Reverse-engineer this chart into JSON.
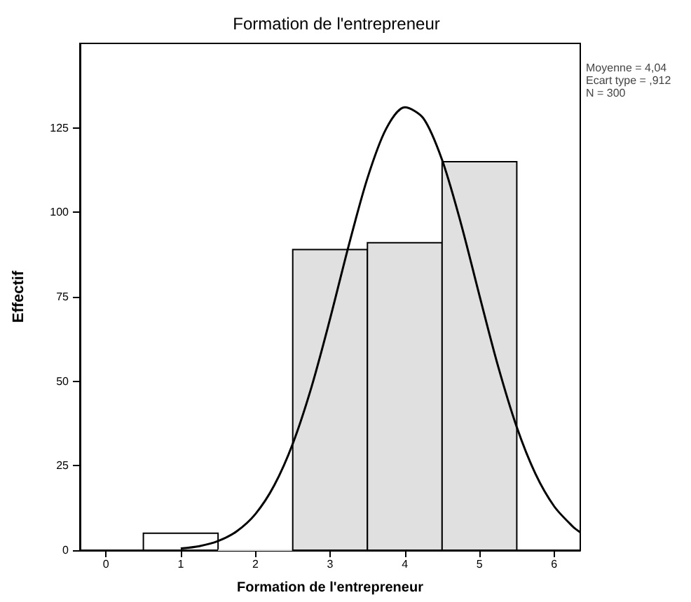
{
  "chart_data": {
    "type": "histogram",
    "title": "Formation de l'entrepreneur",
    "xlabel": "Formation de l'entrepreneur",
    "ylabel": "Effectif",
    "annotations": [
      "Moyenne = 4,04",
      "Ecart type = ,912",
      "N = 300"
    ],
    "bins": [
      0.5,
      1.5,
      2.5,
      3.5,
      4.5,
      5.5
    ],
    "values": [
      5,
      0,
      89,
      91,
      115
    ],
    "colors": [
      "#ffffff",
      "#e0e0e0",
      "#e0e0e0",
      "#e0e0e0",
      "#e0e0e0"
    ],
    "series": [
      {
        "type": "line",
        "color": "#000000",
        "x": [
          1,
          1.25,
          1.5,
          1.75,
          2,
          2.25,
          2.5,
          2.75,
          3,
          3.25,
          3.5,
          3.75,
          4,
          4.25,
          4.5,
          4.75,
          5,
          5.25,
          5.5,
          5.75,
          6,
          6.25,
          6.35
        ],
        "values": [
          0.5,
          1.2,
          2.7,
          5.6,
          10.7,
          19.1,
          31.5,
          48.2,
          68.5,
          90.2,
          110.1,
          124.7,
          131.1,
          127.8,
          115.5,
          96.9,
          75.4,
          54.4,
          36.4,
          22.6,
          13,
          7,
          5.3
        ]
      }
    ],
    "xlim": [
      -0.35,
      6.35
    ],
    "xticks": [
      0,
      1,
      2,
      3,
      4,
      5,
      6
    ],
    "ylim": [
      0,
      150
    ],
    "yticks": [
      0,
      25,
      50,
      75,
      100,
      125
    ],
    "grid": false,
    "marker": "none"
  }
}
